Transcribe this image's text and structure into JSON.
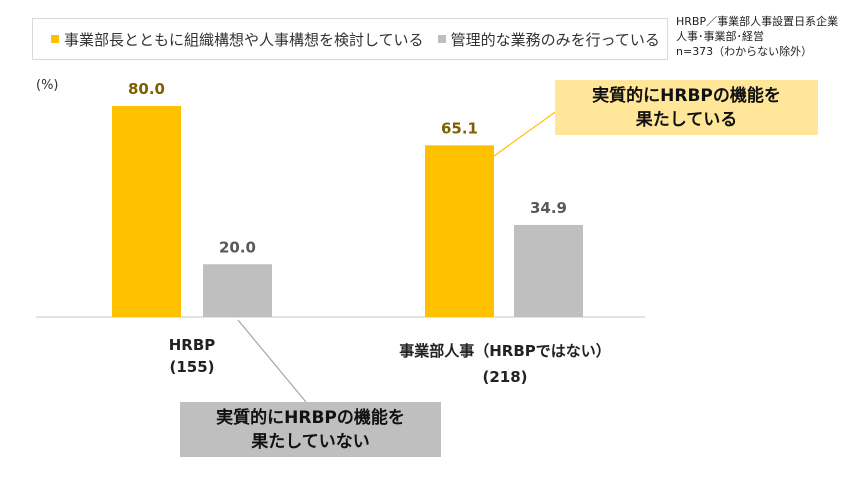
{
  "colors": {
    "series1": "#ffc000",
    "series2": "#bfbfbf",
    "label1": "#7f6000",
    "label2": "#595959",
    "callout_yes": "#ffe699",
    "callout_no": "#bfbfbf"
  },
  "note": [
    "HRBP／事業部人事設置日系企業",
    "人事･事業部･経営",
    "n=373（わからない除外）"
  ],
  "chart_data": {
    "type": "bar",
    "unit_label": "(%)",
    "categories": [
      [
        "HRBP",
        "(155)"
      ],
      [
        "事業部人事（HRBPではない）",
        "(218)"
      ]
    ],
    "series": [
      {
        "name": "事業部長とともに組織構想や人事構想を検討している",
        "values": [
          80.0,
          65.1
        ]
      },
      {
        "name": "管理的な業務のみを行っている",
        "values": [
          20.0,
          34.9
        ]
      }
    ],
    "ylim": [
      0,
      100
    ],
    "grid": false,
    "legend": "top",
    "annotations": [
      {
        "lines": [
          "実質的にHRBPの機能を",
          "果たしている"
        ]
      },
      {
        "lines": [
          "実質的にHRBPの機能を",
          "果たしていない"
        ]
      }
    ]
  }
}
